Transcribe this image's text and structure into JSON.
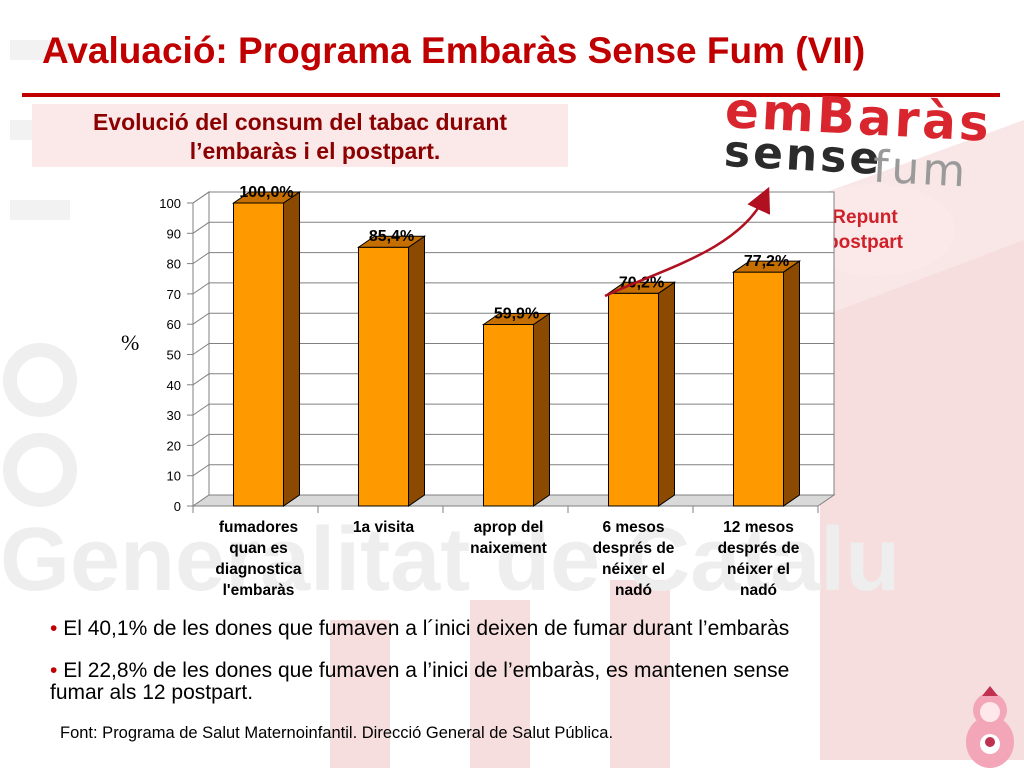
{
  "title": "Avaluació:  Programa Embaràs Sense Fum (VII)",
  "subtitle_line1": "Evolució del consum del tabac durant",
  "subtitle_line2": "l’embaràs i el postpart.",
  "logo": {
    "word1": "emBaràs",
    "word2": "sense",
    "word3": "fum"
  },
  "callout": {
    "line1": "Repunt",
    "line2": "postpart"
  },
  "colors": {
    "title": "#c00000",
    "bar_front": "#ff9900",
    "bar_side": "#8b4a00",
    "callout_text": "#d0202a",
    "arrow": "#b01020"
  },
  "chart_data": {
    "type": "bar",
    "categories": [
      [
        "fumadores",
        "quan es",
        "diagnostica",
        "l'embaràs"
      ],
      [
        "1a visita"
      ],
      [
        "aprop del",
        "naixement"
      ],
      [
        "6 mesos",
        "després de",
        "néixer el",
        "nadó"
      ],
      [
        "12 mesos",
        "després de",
        "néixer el",
        "nadó"
      ]
    ],
    "values": [
      100.0,
      85.4,
      59.9,
      70.2,
      77.2
    ],
    "data_labels": [
      "100,0%",
      "85,4%",
      "59,9%",
      "70,2%",
      "77,2%"
    ],
    "ylabel": "%",
    "ylim": [
      0,
      100
    ],
    "yticks": [
      "0",
      "10",
      "20",
      "30",
      "40",
      "50",
      "60",
      "70",
      "80",
      "90",
      "100"
    ],
    "grid": true
  },
  "bullets": [
    {
      "marker": "•",
      "text": " El 40,1% de les dones que fumaven a l´inici deixen de fumar durant l’embaràs"
    },
    {
      "marker": "•",
      "text": " El 22,8% de les dones que fumaven a l’inici de l’embaràs, es mantenen sense",
      "text2": "fumar als 12  postpart."
    }
  ],
  "source": "Font: Programa de Salut Maternoinfantil. Direcció General de Salut Pública."
}
